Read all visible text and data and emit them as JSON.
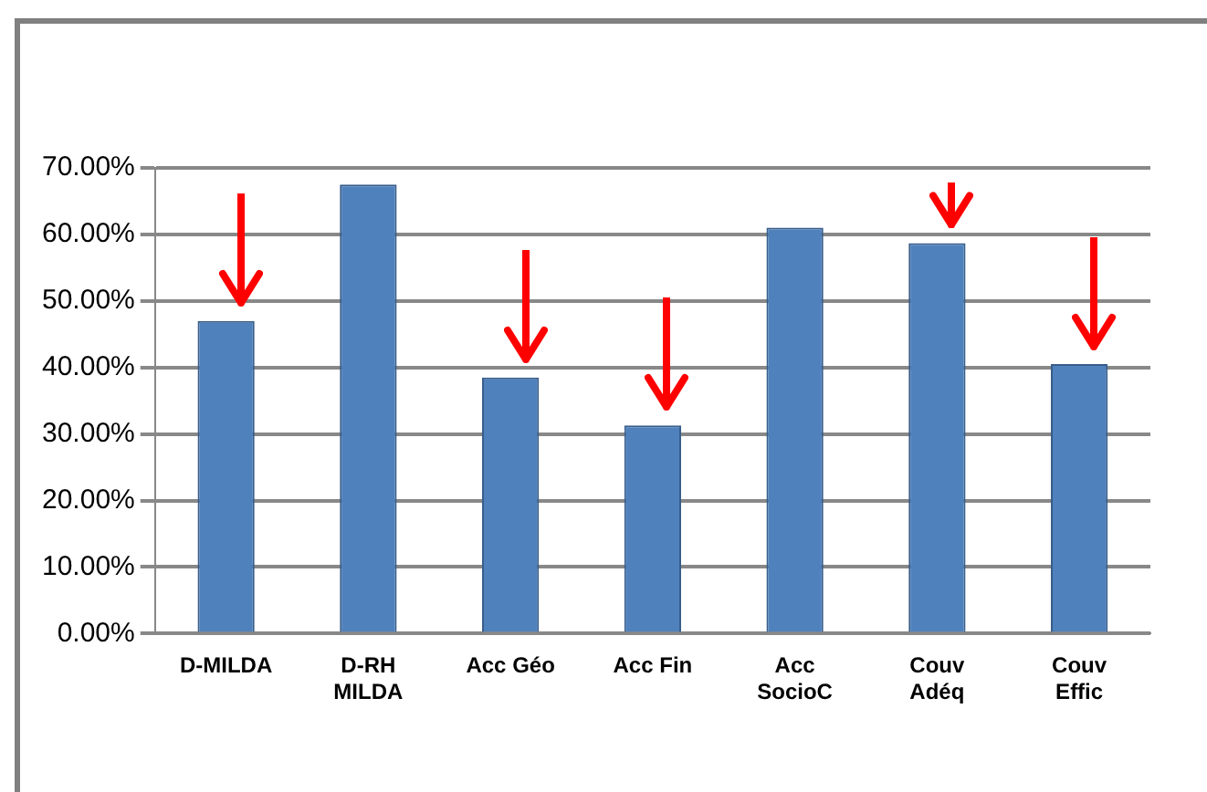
{
  "chart_data": {
    "type": "bar",
    "categories": [
      "D-MILDA",
      "D-RH MILDA",
      "Acc Géo",
      "Acc Fin",
      "Acc SocioC",
      "Couv Adéq",
      "Couv Effic"
    ],
    "values": [
      47,
      67.5,
      38.5,
      31.3,
      61,
      58.7,
      40.5
    ],
    "color": "#4f81bd",
    "ylim": [
      0,
      70
    ],
    "yticks": [
      {
        "value": 0,
        "label": "0.00%"
      },
      {
        "value": 10,
        "label": "10.00%"
      },
      {
        "value": 20,
        "label": "20.00%"
      },
      {
        "value": 30,
        "label": "30.00%"
      },
      {
        "value": 40,
        "label": "40.00%"
      },
      {
        "value": 50,
        "label": "50.00%"
      },
      {
        "value": 60,
        "label": "60.00%"
      },
      {
        "value": 70,
        "label": "70.00%"
      }
    ],
    "grid": "y",
    "legend": false
  }
}
